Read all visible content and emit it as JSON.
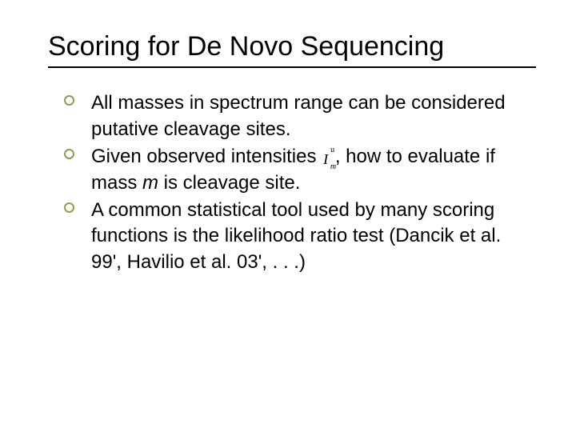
{
  "slide": {
    "title": "Scoring for De Novo Sequencing",
    "title_fontsize": 34,
    "title_color": "#000000",
    "body_fontsize": 24,
    "body_color": "#000000",
    "bullet_ring_color": "#87a24a",
    "background_color": "#ffffff",
    "rule_color": "#000000",
    "bullets": [
      {
        "text_before": "All masses in spectrum range can be considered putative cleavage sites.",
        "has_symbol": false
      },
      {
        "text_before": "Given observed intensities ",
        "has_symbol": true,
        "symbol_base": "I",
        "symbol_sup": "u",
        "symbol_sub": "m",
        "text_after_1": " , how to evaluate if mass ",
        "italic_m": "m",
        "text_after_2": " is cleavage site."
      },
      {
        "text_before": "A common statistical tool used by many scoring functions is the likelihood ratio test  (Dancik et al. 99', Havilio et al. 03', . . .)",
        "has_symbol": false
      }
    ]
  }
}
